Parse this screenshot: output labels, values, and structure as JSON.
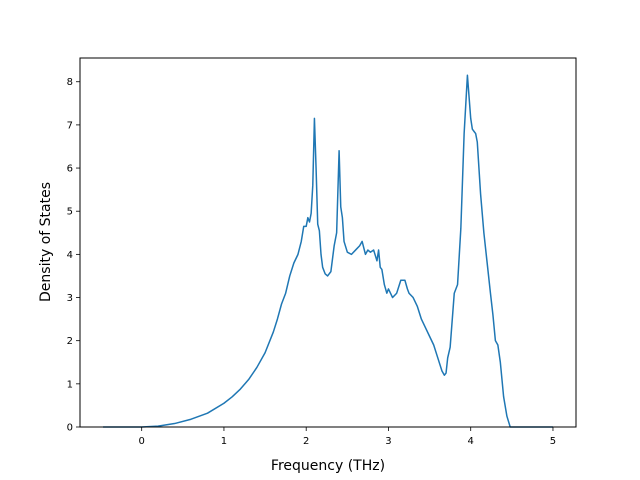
{
  "chart_data": {
    "type": "line",
    "title": "",
    "xlabel": "Frequency (THz)",
    "ylabel": "Density of States",
    "xlim": [
      -0.75,
      5.28
    ],
    "ylim": [
      0,
      8.55
    ],
    "xticks": [
      0,
      1,
      2,
      3,
      4,
      5
    ],
    "yticks": [
      0,
      1,
      2,
      3,
      4,
      5,
      6,
      7,
      8
    ],
    "grid": false,
    "legend": "none",
    "color": "#1f77b4",
    "series": [
      {
        "x": [
          -0.47,
          -0.2,
          0.0,
          0.2,
          0.4,
          0.6,
          0.8,
          1.0,
          1.1,
          1.2,
          1.3,
          1.4,
          1.5,
          1.6,
          1.65,
          1.7,
          1.75,
          1.8,
          1.85,
          1.9,
          1.94,
          1.97,
          2.0,
          2.02,
          2.04,
          2.06,
          2.08,
          2.1,
          2.12,
          2.14,
          2.16,
          2.18,
          2.2,
          2.23,
          2.26,
          2.3,
          2.34,
          2.37,
          2.4,
          2.42,
          2.44,
          2.46,
          2.5,
          2.55,
          2.6,
          2.65,
          2.68,
          2.72,
          2.75,
          2.78,
          2.82,
          2.86,
          2.88,
          2.9,
          2.92,
          2.95,
          2.98,
          3.0,
          3.05,
          3.1,
          3.15,
          3.2,
          3.23,
          3.25,
          3.3,
          3.35,
          3.4,
          3.45,
          3.5,
          3.55,
          3.6,
          3.65,
          3.68,
          3.7,
          3.72,
          3.75,
          3.78,
          3.8,
          3.84,
          3.88,
          3.92,
          3.96,
          4.0,
          4.02,
          4.04,
          4.06,
          4.08,
          4.12,
          4.16,
          4.2,
          4.24,
          4.27,
          4.3,
          4.33,
          4.36,
          4.4,
          4.44,
          4.48,
          4.52,
          4.56,
          4.6,
          4.8,
          5.0
        ],
        "y": [
          0.0,
          0.0,
          0.0,
          0.02,
          0.08,
          0.18,
          0.32,
          0.55,
          0.7,
          0.88,
          1.1,
          1.38,
          1.72,
          2.2,
          2.5,
          2.85,
          3.1,
          3.5,
          3.8,
          4.0,
          4.3,
          4.65,
          4.65,
          4.85,
          4.75,
          4.95,
          5.6,
          7.15,
          6.0,
          4.7,
          4.55,
          4.0,
          3.7,
          3.55,
          3.5,
          3.6,
          4.2,
          4.5,
          6.4,
          5.1,
          4.85,
          4.3,
          4.05,
          4.0,
          4.1,
          4.2,
          4.3,
          4.0,
          4.1,
          4.05,
          4.1,
          3.85,
          4.1,
          3.7,
          3.65,
          3.3,
          3.1,
          3.2,
          3.0,
          3.1,
          3.4,
          3.4,
          3.2,
          3.1,
          3.0,
          2.8,
          2.5,
          2.3,
          2.1,
          1.9,
          1.6,
          1.3,
          1.2,
          1.25,
          1.6,
          1.85,
          2.6,
          3.1,
          3.3,
          4.6,
          6.8,
          8.15,
          7.15,
          6.9,
          6.85,
          6.8,
          6.6,
          5.4,
          4.5,
          3.8,
          3.1,
          2.6,
          2.0,
          1.9,
          1.5,
          0.7,
          0.25,
          0.0,
          0.0,
          0.0,
          0.0,
          0.0,
          0.0
        ]
      }
    ]
  }
}
